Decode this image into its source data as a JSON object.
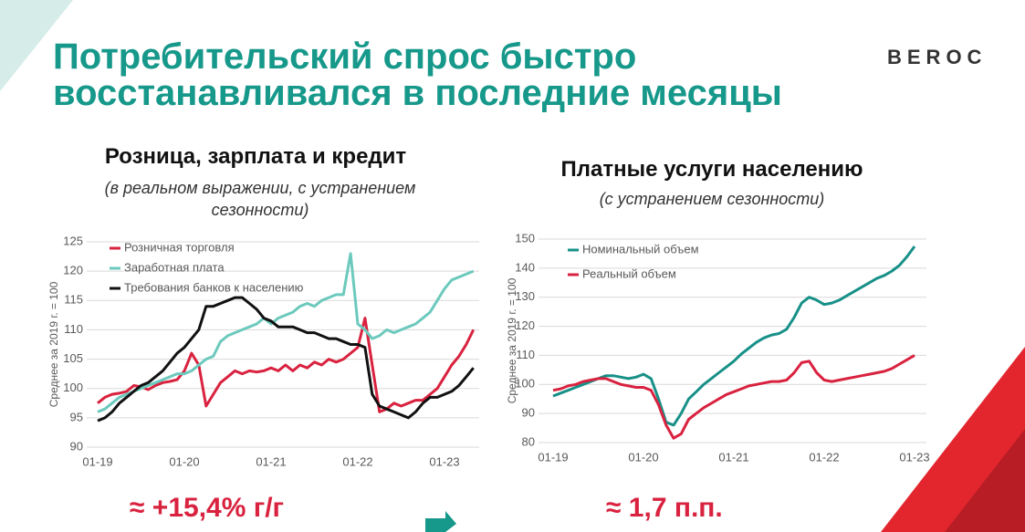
{
  "title": "Потребительский спрос быстро восстанавливался в последние месяцы",
  "logo": "BEROC",
  "chart_data": [
    {
      "type": "line",
      "title": "Розница, зарплата и кредит",
      "subtitle": "(в реальном выражении, с устранением сезонности)",
      "y_label": "Среднее за 2019 г. = 100",
      "annotation": "≈ +15,4% г/г",
      "categories": [
        "01-19",
        null,
        null,
        null,
        null,
        null,
        null,
        null,
        null,
        null,
        null,
        null,
        "01-20",
        null,
        null,
        null,
        null,
        null,
        null,
        null,
        null,
        null,
        null,
        null,
        "01-21",
        null,
        null,
        null,
        null,
        null,
        null,
        null,
        null,
        null,
        null,
        null,
        "01-22",
        null,
        null,
        null,
        null,
        null,
        null,
        null,
        null,
        null,
        null,
        null,
        "01-23",
        null,
        null,
        null,
        null
      ],
      "ylim": [
        90,
        125
      ],
      "yticks": [
        90,
        95,
        100,
        105,
        110,
        115,
        120,
        125
      ],
      "grid": true,
      "series": [
        {
          "name": "Розничная торговля",
          "color": "#d9223f",
          "values": [
            97.5,
            98.5,
            99,
            99.2,
            99.5,
            100.5,
            100.3,
            99.8,
            100.5,
            101,
            101.2,
            101.5,
            103,
            106,
            104,
            97,
            99,
            101,
            102,
            103,
            102.5,
            103,
            102.8,
            103,
            103.5,
            103,
            104,
            103,
            104,
            103.5,
            104.5,
            104,
            105,
            104.5,
            105,
            106,
            107,
            112,
            104,
            96,
            96.5,
            97.5,
            97,
            97.5,
            98,
            98,
            99,
            100,
            102,
            104,
            105.5,
            107.5,
            110
          ]
        },
        {
          "name": "Заработная плата",
          "color": "#6cc9bd",
          "values": [
            96,
            96.5,
            97.5,
            98.5,
            99,
            99.5,
            100,
            100.5,
            101,
            101.5,
            102,
            102.5,
            102.5,
            103,
            104,
            105,
            105.5,
            108,
            109,
            109.5,
            110,
            110.5,
            111,
            112,
            111,
            112,
            112.5,
            113,
            114,
            114.5,
            114,
            115,
            115.5,
            116,
            116,
            123,
            111,
            110,
            108.5,
            109,
            110,
            109.5,
            110,
            110.5,
            111,
            112,
            113,
            115,
            117,
            118.5,
            119,
            119.5,
            120
          ]
        },
        {
          "name": "Требования банков к населению",
          "color": "#111111",
          "values": [
            94.5,
            95,
            96,
            97.5,
            98.5,
            99.5,
            100.5,
            101,
            102,
            103,
            104.5,
            106,
            107,
            108.5,
            110,
            114,
            114,
            114.5,
            115,
            115.5,
            115.5,
            114.5,
            113.5,
            112,
            111.5,
            110.5,
            110.5,
            110.5,
            110,
            109.5,
            109.5,
            109,
            108.5,
            108.5,
            108,
            107.5,
            107.5,
            107,
            99,
            97,
            96.5,
            96,
            95.5,
            95,
            96,
            97.5,
            98.5,
            98.5,
            99,
            99.5,
            100.5,
            102,
            103.5
          ]
        }
      ]
    },
    {
      "type": "line",
      "title": "Платные услуги населению",
      "subtitle": "(с устранением сезонности)",
      "y_label": "Среднее за 2019 г. = 100",
      "annotation": "≈ 1,7 п.п.",
      "categories": [
        "01-19",
        null,
        null,
        null,
        null,
        null,
        null,
        null,
        null,
        null,
        null,
        null,
        "01-20",
        null,
        null,
        null,
        null,
        null,
        null,
        null,
        null,
        null,
        null,
        null,
        "01-21",
        null,
        null,
        null,
        null,
        null,
        null,
        null,
        null,
        null,
        null,
        null,
        "01-22",
        null,
        null,
        null,
        null,
        null,
        null,
        null,
        null,
        null,
        null,
        null,
        "01-23"
      ],
      "ylim": [
        80,
        150
      ],
      "yticks": [
        80,
        90,
        100,
        110,
        120,
        130,
        140,
        150
      ],
      "grid": true,
      "series": [
        {
          "name": "Номинальный объем",
          "color": "#179088",
          "values": [
            96,
            97,
            98,
            99,
            100,
            101,
            102,
            103,
            103,
            102.5,
            102,
            102.5,
            103.5,
            102,
            95,
            87,
            86,
            90,
            95,
            97.5,
            100,
            102,
            104,
            106,
            108,
            110.5,
            112.5,
            114.5,
            116,
            117,
            117.5,
            119,
            123,
            128,
            130,
            129,
            127.5,
            128,
            129,
            130.5,
            132,
            133.5,
            135,
            136.5,
            137.5,
            139,
            141,
            144,
            147.5
          ]
        },
        {
          "name": "Реальный объем",
          "color": "#d9223f",
          "values": [
            98,
            98.5,
            99.5,
            100,
            101,
            101.5,
            102,
            102,
            101,
            100,
            99.5,
            99,
            99,
            98,
            93,
            86,
            81.5,
            83,
            88,
            90,
            92,
            93.5,
            95,
            96.5,
            97.5,
            98.5,
            99.5,
            100,
            100.5,
            101,
            101,
            101.5,
            104,
            107.5,
            108,
            104,
            101.5,
            101,
            101.5,
            102,
            102.5,
            103,
            103.5,
            104,
            104.5,
            105.5,
            107,
            108.5,
            110
          ]
        }
      ]
    }
  ]
}
